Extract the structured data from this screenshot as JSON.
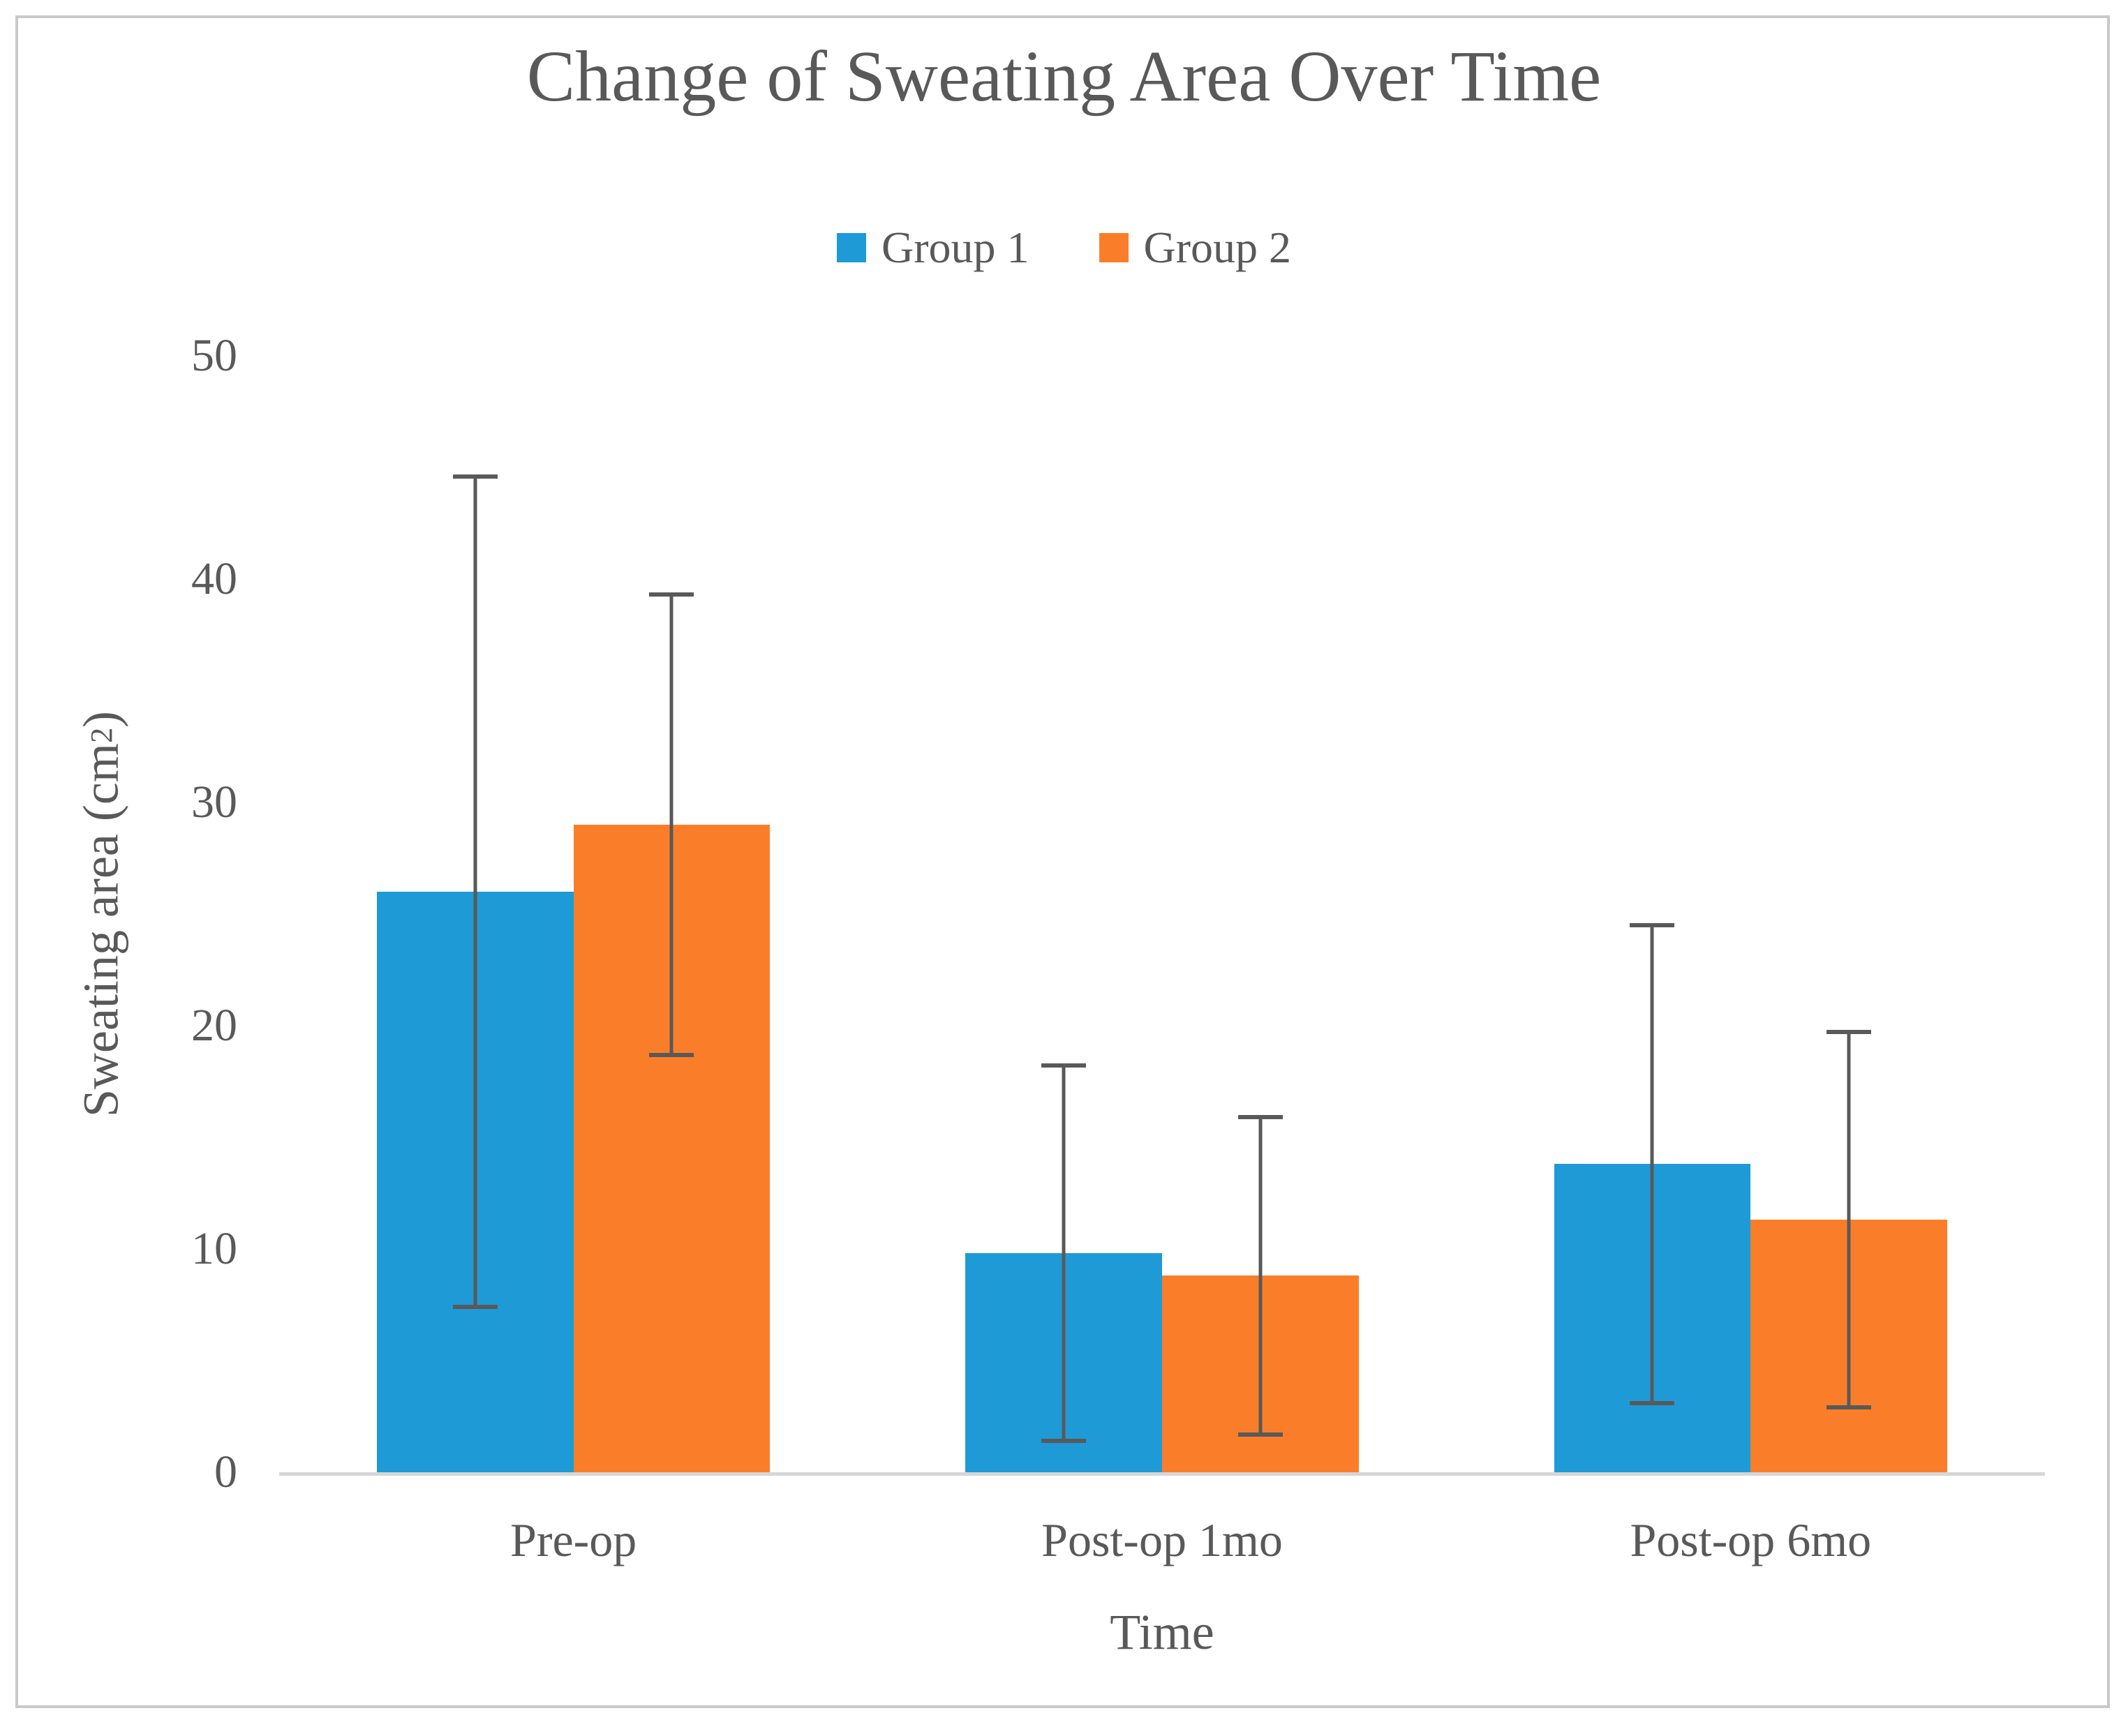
{
  "figure": {
    "text_color": "#595959",
    "frame_border_color": "#c9c9c9",
    "axis_line_color": "#d6d6d6",
    "background_color": "#ffffff"
  },
  "chart_data": {
    "type": "bar",
    "title": "Change of Sweating Area Over Time",
    "xlabel": "Time",
    "ylabel": "Sweating area (cm²)",
    "categories": [
      "Pre-op",
      "Post-op 1mo",
      "Post-op 6mo"
    ],
    "series": [
      {
        "name": "Group 1",
        "color": "#1E9AD7",
        "values": [
          26.0,
          9.8,
          13.8
        ],
        "error": [
          18.7,
          8.5,
          10.8
        ]
      },
      {
        "name": "Group 2",
        "color": "#FA7E2A",
        "values": [
          29.0,
          8.8,
          11.3
        ],
        "error": [
          10.4,
          7.2,
          8.5
        ]
      }
    ],
    "ylim": [
      0,
      50
    ],
    "yticks": [
      0,
      10,
      20,
      30,
      40,
      50
    ],
    "grid": false,
    "legend_position": "top-center",
    "error_bar_color": "#595959"
  }
}
